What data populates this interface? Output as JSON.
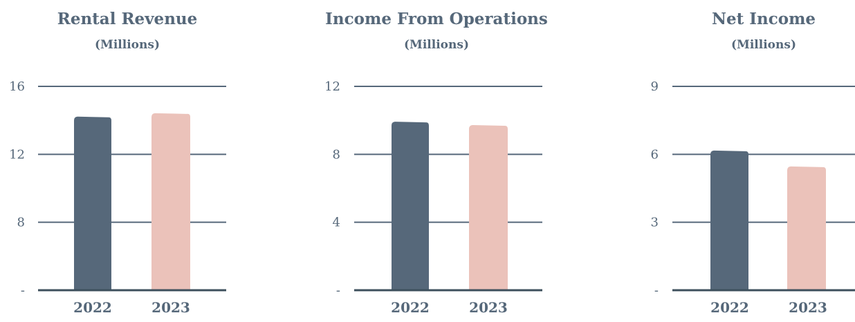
{
  "colors": {
    "bar_2022": "#56687a",
    "bar_2023": "#ebc2ba",
    "grid": "#56687a",
    "text": "#56687a"
  },
  "chart_data": [
    {
      "type": "bar",
      "title": "Rental Revenue",
      "subtitle": "(Millions)",
      "categories": [
        "2022",
        "2023"
      ],
      "values": [
        14.2,
        14.4
      ],
      "yticks": [
        "-",
        "8",
        "12",
        "16"
      ],
      "ytick_values": [
        4,
        8,
        12,
        16
      ],
      "ylim": [
        4,
        16
      ],
      "grid": true
    },
    {
      "type": "bar",
      "title": "Income From Operations",
      "subtitle": "(Millions)",
      "categories": [
        "2022",
        "2023"
      ],
      "values": [
        9.9,
        9.7
      ],
      "yticks": [
        "-",
        "4",
        "8",
        "12"
      ],
      "ytick_values": [
        0,
        4,
        8,
        12
      ],
      "ylim": [
        0,
        12
      ],
      "grid": true
    },
    {
      "type": "bar",
      "title": "Net Income",
      "subtitle": "(Millions)",
      "categories": [
        "2022",
        "2023"
      ],
      "values": [
        6.15,
        5.45
      ],
      "yticks": [
        "-",
        "3",
        "6",
        "9"
      ],
      "ytick_values": [
        0,
        3,
        6,
        9
      ],
      "ylim": [
        0,
        9
      ],
      "grid": true
    }
  ]
}
